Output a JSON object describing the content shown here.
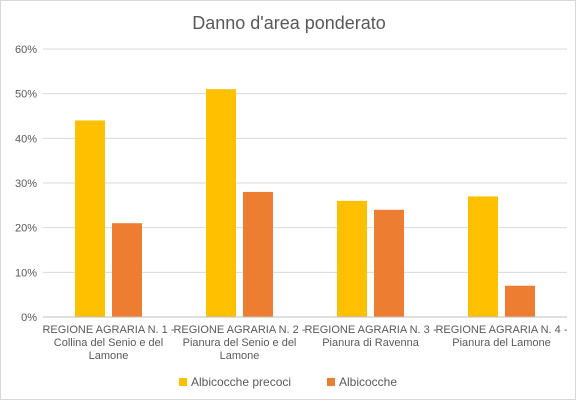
{
  "chart_data": {
    "type": "bar",
    "title": "Danno d'area ponderato",
    "categories": [
      [
        "REGIONE AGRARIA N. 1 -",
        "Collina del Senio e del",
        "Lamone"
      ],
      [
        "REGIONE AGRARIA N. 2 -",
        "Pianura del Senio e del",
        "Lamone"
      ],
      [
        "REGIONE AGRARIA N. 3 -",
        "Pianura di Ravenna"
      ],
      [
        "REGIONE AGRARIA N. 4 -",
        "Pianura del Lamone"
      ]
    ],
    "series": [
      {
        "name": "Albicocche precoci",
        "color": "#FFC000",
        "values": [
          44,
          51,
          26,
          27
        ]
      },
      {
        "name": "Albicocche",
        "color": "#ED7D31",
        "values": [
          21,
          28,
          24,
          7
        ]
      }
    ],
    "ylim": [
      0,
      60
    ],
    "yticks": [
      "0%",
      "10%",
      "20%",
      "30%",
      "40%",
      "50%",
      "60%"
    ],
    "grid": true,
    "legend_position": "bottom"
  }
}
